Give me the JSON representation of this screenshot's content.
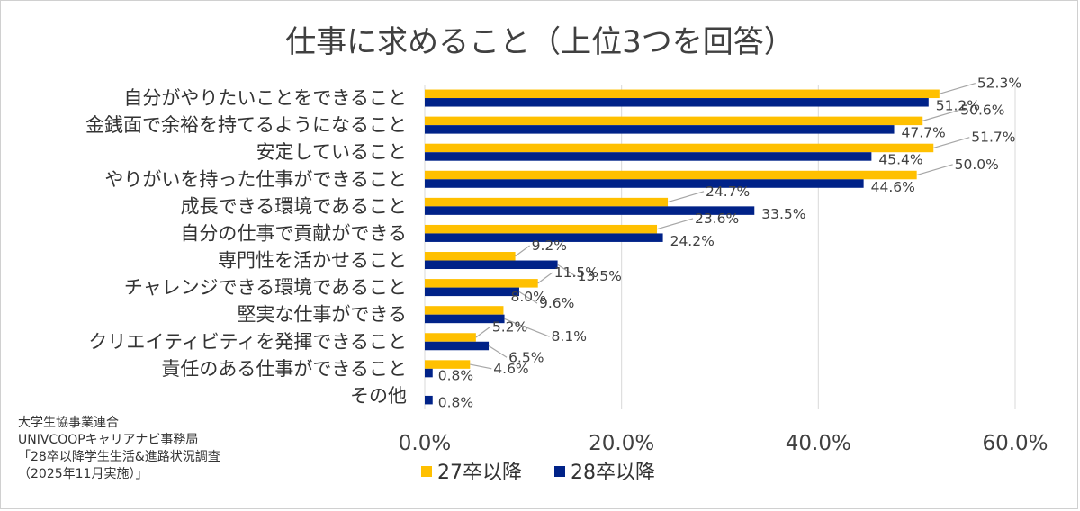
{
  "chart_data": {
    "type": "bar",
    "orientation": "horizontal",
    "title": "仕事に求めること（上位3つを回答）",
    "categories": [
      "自分がやりたいことをできること",
      "金銭面で余裕を持てるようになること",
      "安定していること",
      "やりがいを持った仕事ができること",
      "成長できる環境であること",
      "自分の仕事で貢献ができる",
      "専門性を活かせること",
      "チャレンジできる環境であること",
      "堅実な仕事ができる",
      "クリエイティビティを発揮できること",
      "責任のある仕事ができること",
      "その他"
    ],
    "series": [
      {
        "name": "27卒以降",
        "color": "#FFC000",
        "values": [
          52.3,
          50.6,
          51.7,
          50.0,
          24.7,
          23.6,
          9.2,
          11.5,
          8.0,
          5.2,
          4.6,
          null
        ],
        "labels": [
          "52.3%",
          "50.6%",
          "51.7%",
          "50.0%",
          "24.7%",
          "23.6%",
          "9.2%",
          "11.5%",
          "8.0%",
          "5.2%",
          "4.6%",
          ""
        ]
      },
      {
        "name": "28卒以降",
        "color": "#002288",
        "values": [
          51.2,
          47.7,
          45.4,
          44.6,
          33.5,
          24.2,
          13.5,
          9.6,
          8.1,
          6.5,
          0.8,
          0.8
        ],
        "labels": [
          "51.2%",
          "47.7%",
          "45.4%",
          "44.6%",
          "33.5%",
          "24.2%",
          "13.5%",
          "9.6%",
          "8.1%",
          "6.5%",
          "0.8%",
          "0.8%"
        ]
      }
    ],
    "x_ticks": [
      "0.0%",
      "20.0%",
      "40.0%",
      "60.0%"
    ],
    "xlim": [
      0,
      60
    ],
    "grid": true,
    "legend": "bottom"
  },
  "source": [
    "大学生協事業連合",
    "UNIVCOOPキャリアナビ事務局",
    "「28卒以降学生生活&進路状況調査",
    "（2025年11月実施）」"
  ]
}
